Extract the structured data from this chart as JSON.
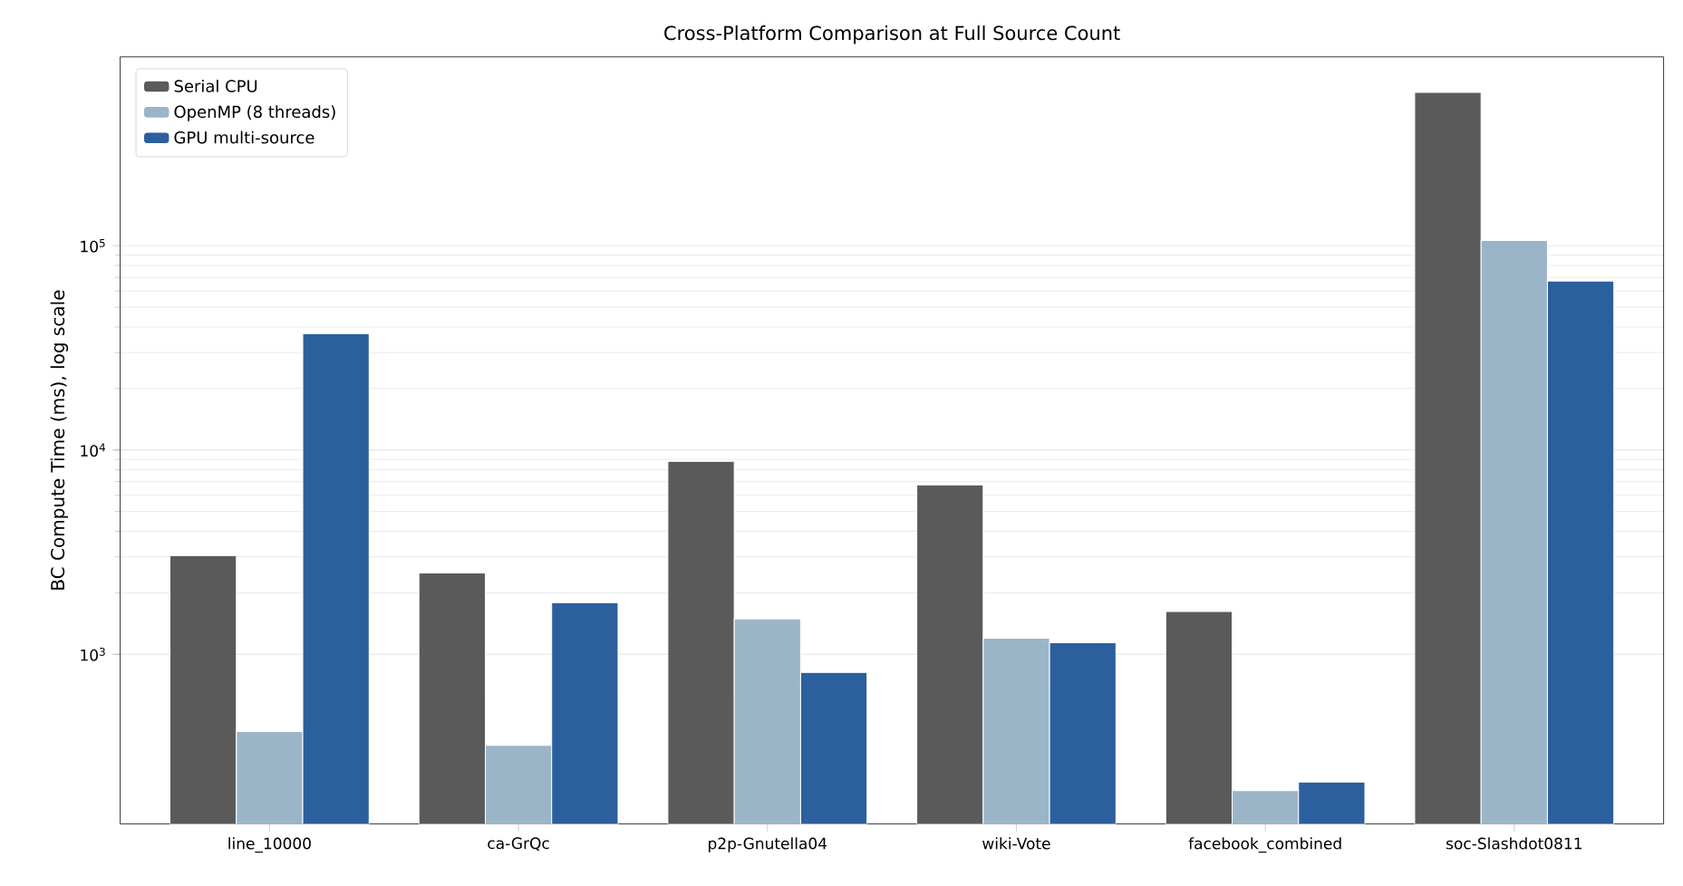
{
  "chart_data": {
    "type": "bar",
    "title": "Cross-Platform Comparison at Full Source Count",
    "ylabel": "BC Compute Time (ms), log scale",
    "categories": [
      "line_10000",
      "ca-GrQc",
      "p2p-Gnutella04",
      "wiki-Vote",
      "facebook_combined",
      "soc-Slashdot0811"
    ],
    "series": [
      {
        "name": "Serial CPU",
        "color": "#5a5a5a",
        "values": [
          3040,
          2500,
          8800,
          6750,
          1620,
          563000
        ]
      },
      {
        "name": "OpenMP (8 threads)",
        "color": "#9bb5c8",
        "values": [
          419,
          358,
          1490,
          1200,
          215,
          106000
        ]
      },
      {
        "name": "GPU multi-source",
        "color": "#2c5f9e",
        "values": [
          37100,
          1790,
          815,
          1140,
          237,
          67100
        ]
      }
    ],
    "log": true,
    "ylim": [
      148,
      840000
    ],
    "yticks": [
      {
        "value": 1000,
        "label": "10$^{3}$"
      },
      {
        "value": 10000,
        "label": "10$^{4}$"
      },
      {
        "value": 100000,
        "label": "10$^{5}$"
      }
    ],
    "grid": "y",
    "legend": "top left"
  }
}
